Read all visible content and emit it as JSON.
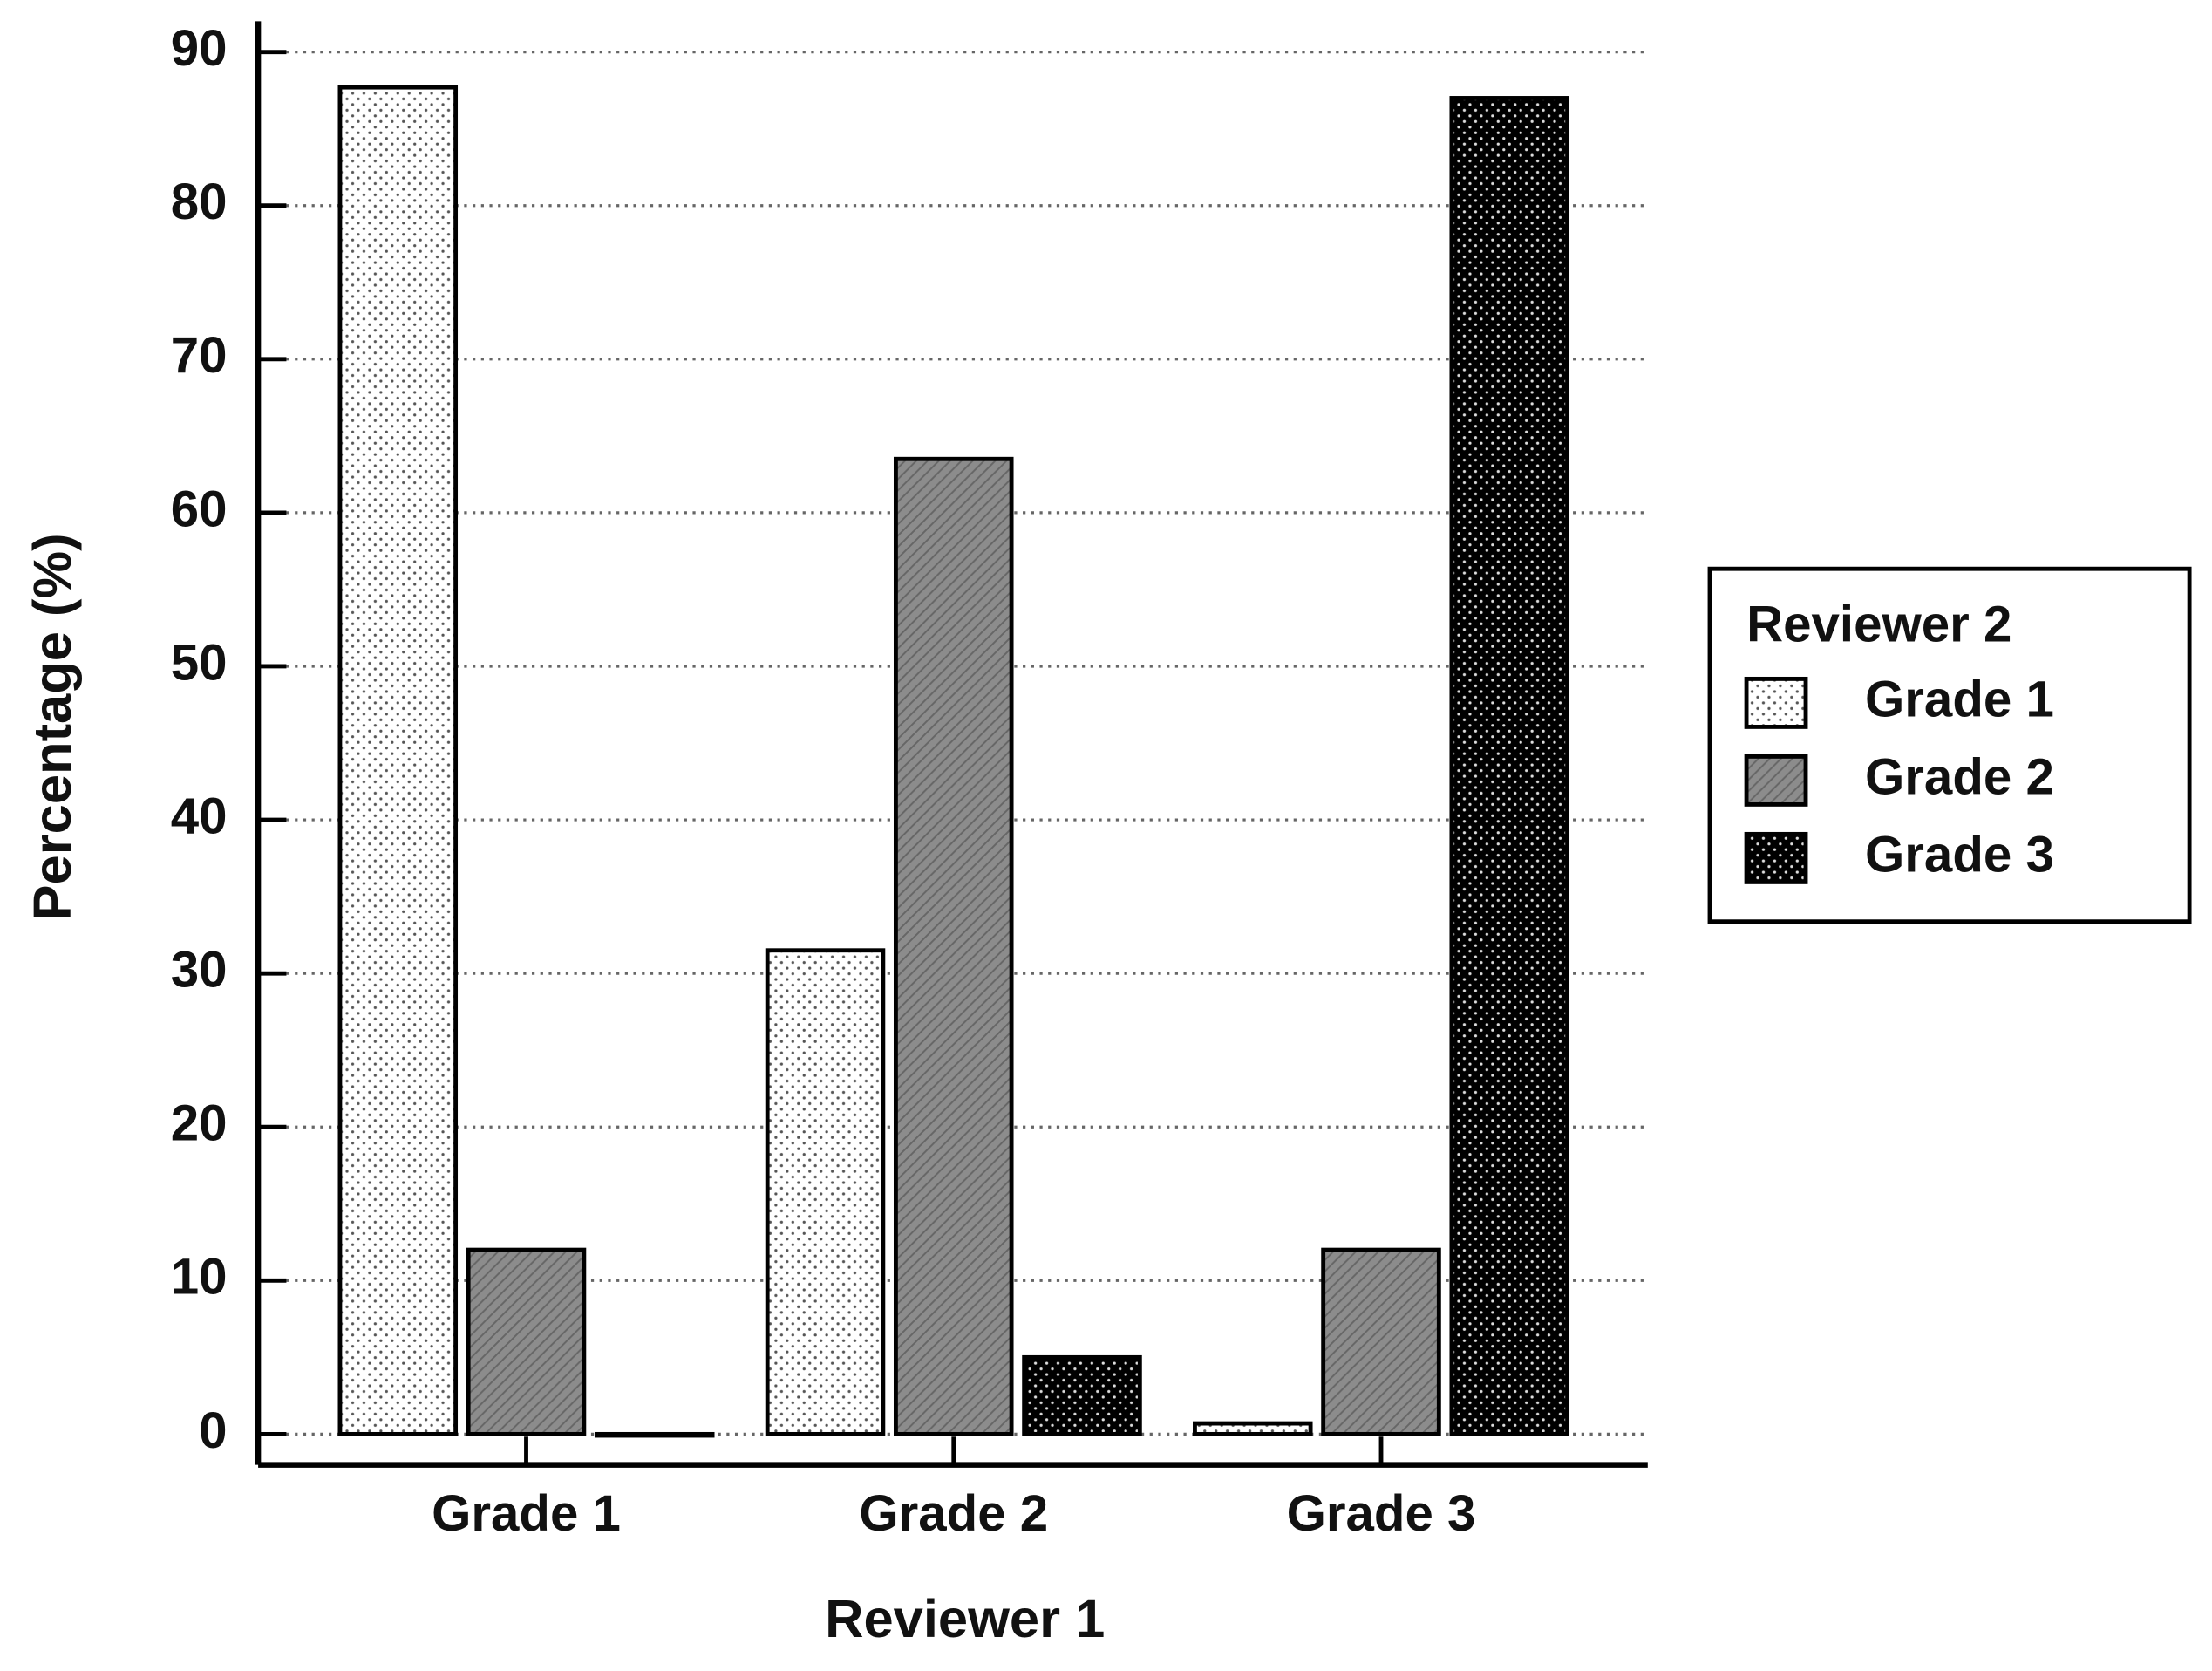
{
  "chart_data": {
    "type": "bar",
    "x_label": "Reviewer 1",
    "y_label": "Percentage (%)",
    "categories": [
      "Grade 1",
      "Grade 2",
      "Grade 3"
    ],
    "legend_title": "Reviewer 2",
    "legend": "right",
    "series": [
      {
        "name": "Grade 1",
        "color": "#ffffff",
        "values": [
          87.7,
          31.5,
          0.7
        ]
      },
      {
        "name": "Grade 2",
        "color": "#8c8c8c",
        "values": [
          12,
          63.5,
          12
        ]
      },
      {
        "name": "Grade 3",
        "color": "#000000",
        "values": [
          0,
          5,
          87
        ]
      }
    ],
    "ylim": [
      -2,
      92
    ],
    "yticks": [
      0,
      10,
      20,
      30,
      40,
      50,
      60,
      70,
      80,
      90
    ],
    "grid": true
  }
}
